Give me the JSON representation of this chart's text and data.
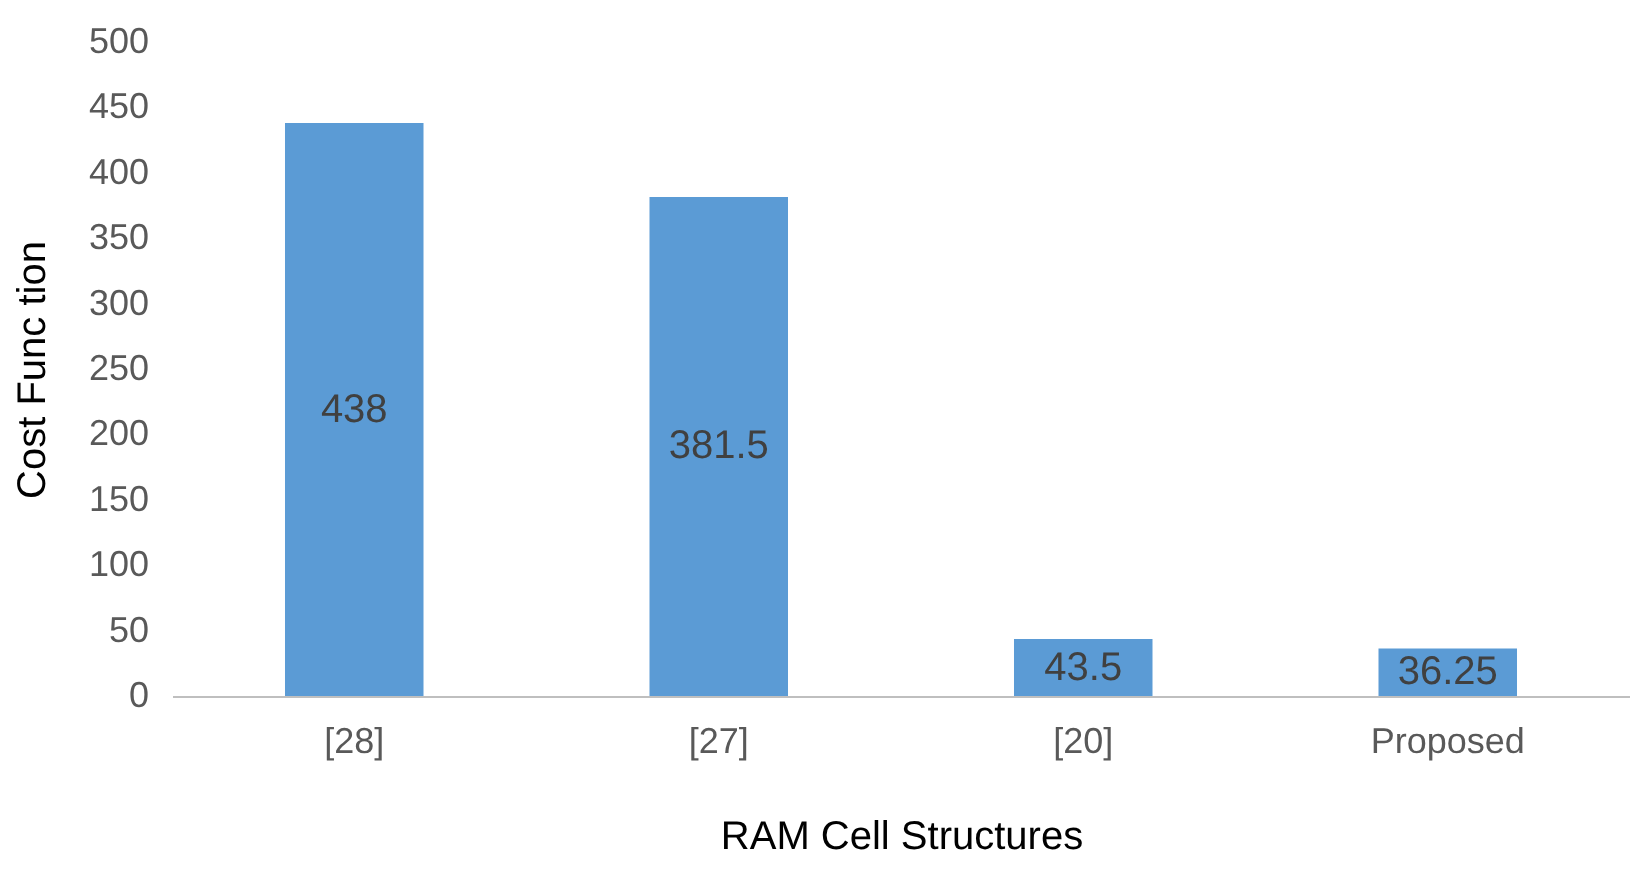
{
  "chart_data": {
    "type": "bar",
    "xlabel": "RAM Cell Structures",
    "ylabel": "Cost  Func tion",
    "categories": [
      "[28]",
      "[27]",
      "[20]",
      "Proposed"
    ],
    "values": [
      438,
      381.5,
      43.5,
      36.25
    ],
    "color": "#5b9bd5",
    "ylim": [
      0,
      500
    ],
    "yticks": [
      0,
      50,
      100,
      150,
      200,
      250,
      300,
      350,
      400,
      450,
      500
    ],
    "grid": false,
    "data_labels": true
  }
}
